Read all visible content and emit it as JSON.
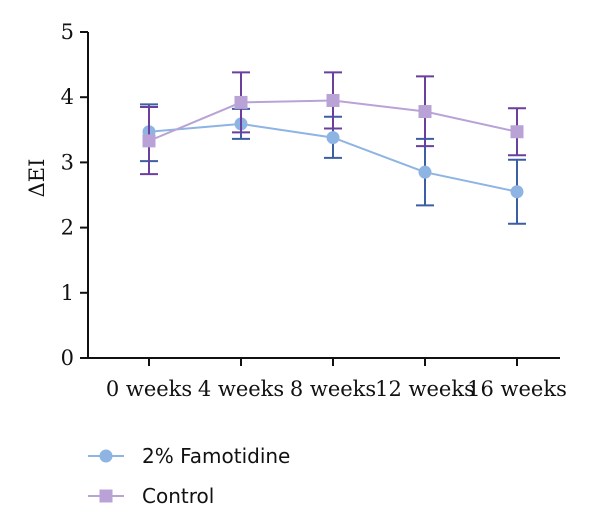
{
  "chart_data": {
    "type": "line",
    "categories": [
      "0 weeks",
      "4 weeks",
      "8 weeks",
      "12 weeks",
      "16 weeks"
    ],
    "ylabel": "ΔEI",
    "ylim": [
      0,
      5
    ],
    "yticks": [
      "0",
      "1",
      "2",
      "3",
      "4",
      "5"
    ],
    "grid": false,
    "legend_position": "bottom-left",
    "series": [
      {
        "name": "2% Famotidine",
        "color": "#8eb4e3",
        "error_color": "#3c5fa3",
        "marker": "circle",
        "values": [
          3.47,
          3.59,
          3.38,
          2.85,
          2.55
        ],
        "err_low": [
          3.02,
          3.36,
          3.07,
          2.34,
          2.06
        ],
        "err_high": [
          3.89,
          3.82,
          3.7,
          3.36,
          3.04
        ]
      },
      {
        "name": "Control",
        "color": "#b9a3d6",
        "error_color": "#6a3f9e",
        "marker": "square",
        "values": [
          3.33,
          3.92,
          3.95,
          3.78,
          3.47
        ],
        "err_low": [
          2.82,
          3.46,
          3.52,
          3.25,
          3.11
        ],
        "err_high": [
          3.85,
          4.38,
          4.38,
          4.32,
          3.83
        ]
      }
    ]
  }
}
